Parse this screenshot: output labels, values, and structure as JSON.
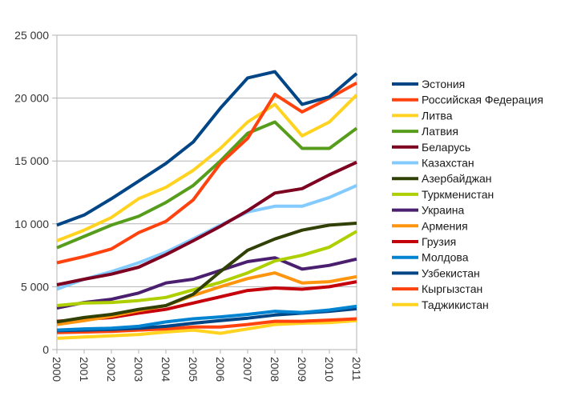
{
  "chart_data": {
    "type": "line",
    "title": "",
    "xlabel": "",
    "ylabel": "",
    "ylim": [
      0,
      25000
    ],
    "y_ticks": [
      0,
      5000,
      10000,
      15000,
      20000,
      25000
    ],
    "y_tick_labels": [
      "0",
      "5 000",
      "10 000",
      "15 000",
      "20 000",
      "25 000"
    ],
    "grid": true,
    "legend_position": "right",
    "x": [
      "2000",
      "2001",
      "2002",
      "2003",
      "2004",
      "2005",
      "2006",
      "2007",
      "2008",
      "2009",
      "2010",
      "2011"
    ],
    "series": [
      {
        "name": "Эстония",
        "color": "#004586",
        "values": [
          9900,
          10700,
          12000,
          13400,
          14800,
          16500,
          19200,
          21600,
          22100,
          19500,
          20100,
          21950
        ]
      },
      {
        "name": "Российская Федерация",
        "color": "#ff420e",
        "values": [
          6900,
          7400,
          8000,
          9300,
          10200,
          11900,
          14800,
          16800,
          20300,
          18900,
          20000,
          21200
        ]
      },
      {
        "name": "Литва",
        "color": "#ffd320",
        "values": [
          8650,
          9500,
          10500,
          12000,
          12900,
          14250,
          16000,
          18100,
          19500,
          17000,
          18100,
          20250
        ]
      },
      {
        "name": "Латвия",
        "color": "#579d1c",
        "values": [
          8100,
          9000,
          9900,
          10600,
          11700,
          13050,
          15000,
          17200,
          18100,
          16000,
          16000,
          17600
        ]
      },
      {
        "name": "Беларусь",
        "color": "#7e0021",
        "values": [
          5150,
          5600,
          6000,
          6550,
          7550,
          8650,
          9800,
          11050,
          12450,
          12800,
          13900,
          14900
        ]
      },
      {
        "name": "Казахстан",
        "color": "#83caff",
        "values": [
          4800,
          5600,
          6200,
          6900,
          7750,
          8800,
          9900,
          10950,
          11400,
          11400,
          12100,
          13050
        ]
      },
      {
        "name": "Азербайджан",
        "color": "#314004",
        "values": [
          2200,
          2550,
          2800,
          3200,
          3500,
          4400,
          6200,
          7900,
          8800,
          9500,
          9900,
          10050
        ]
      },
      {
        "name": "Туркменистан",
        "color": "#aecf00",
        "values": [
          3500,
          3700,
          3750,
          3900,
          4150,
          4750,
          5350,
          6100,
          7050,
          7500,
          8150,
          9400
        ]
      },
      {
        "name": "Украина",
        "color": "#4b1f6f",
        "values": [
          3300,
          3750,
          4000,
          4500,
          5300,
          5600,
          6300,
          7000,
          7300,
          6400,
          6700,
          7200
        ]
      },
      {
        "name": "Армения",
        "color": "#ff950e",
        "values": [
          2000,
          2300,
          2650,
          3100,
          3500,
          4300,
          5000,
          5650,
          6100,
          5300,
          5400,
          5800
        ]
      },
      {
        "name": "Грузия",
        "color": "#c5000b",
        "values": [
          2250,
          2400,
          2550,
          2900,
          3200,
          3700,
          4200,
          4700,
          4900,
          4800,
          5000,
          5400
        ]
      },
      {
        "name": "Молдова",
        "color": "#0084d1",
        "values": [
          1550,
          1650,
          1700,
          1850,
          2200,
          2450,
          2600,
          2800,
          3050,
          2950,
          3150,
          3450
        ]
      },
      {
        "name": "Узбекистан",
        "color": "#004586",
        "values": [
          1500,
          1550,
          1600,
          1700,
          1850,
          2100,
          2300,
          2500,
          2750,
          2900,
          3050,
          3250
        ]
      },
      {
        "name": "Кыргызстан",
        "color": "#ff420e",
        "values": [
          1350,
          1400,
          1450,
          1550,
          1650,
          1800,
          1800,
          2000,
          2250,
          2250,
          2350,
          2450
        ]
      },
      {
        "name": "Таджикистан",
        "color": "#ffd320",
        "values": [
          900,
          1000,
          1100,
          1200,
          1400,
          1550,
          1300,
          1650,
          2000,
          2100,
          2150,
          2300
        ]
      }
    ]
  }
}
